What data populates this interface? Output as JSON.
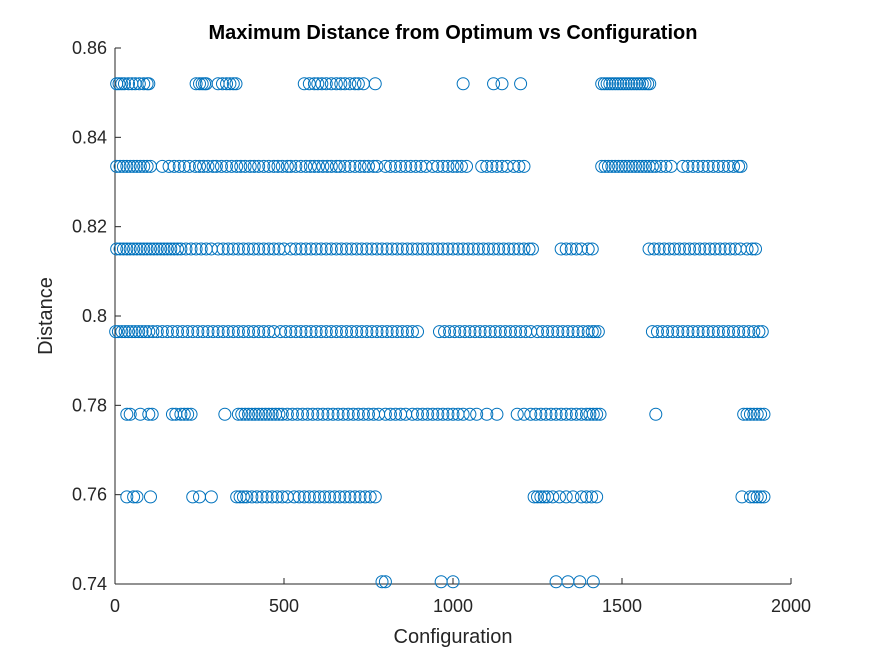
{
  "chart_data": {
    "type": "scatter",
    "title": "Maximum Distance from Optimum vs Configuration",
    "xlabel": "Configuration",
    "ylabel": "Distance",
    "xlim": [
      0,
      2000
    ],
    "ylim": [
      0.74,
      0.86
    ],
    "xticks": [
      "0",
      "500",
      "1000",
      "1500",
      "2000"
    ],
    "yticks": [
      "0.74",
      "0.76",
      "0.78",
      "0.8",
      "0.82",
      "0.84",
      "0.86"
    ],
    "xtick_values": [
      0,
      500,
      1000,
      1500,
      2000
    ],
    "ytick_values": [
      0.74,
      0.76,
      0.78,
      0.8,
      0.82,
      0.84,
      0.86
    ],
    "grid": false,
    "marker": "open-circle",
    "marker_color": "#0072BD",
    "series": [
      {
        "levels": [
          {
            "y": 0.852,
            "x": [
              5,
              12,
              20,
              28,
              40,
              50,
              60,
              72,
              85,
              95,
              100,
              240,
              250,
              258,
              265,
              270,
              305,
              318,
              330,
              340,
              350,
              358,
              560,
              575,
              590,
              600,
              612,
              625,
              640,
              655,
              668,
              680,
              695,
              710,
              720,
              735,
              770,
              1030,
              1120,
              1145,
              1200,
              1440,
              1448,
              1456,
              1464,
              1472,
              1480,
              1488,
              1496,
              1504,
              1512,
              1520,
              1528,
              1536,
              1544,
              1552,
              1560,
              1568,
              1576,
              1582
            ]
          },
          {
            "y": 0.8335,
            "x": [
              5,
              15,
              25,
              35,
              45,
              55,
              65,
              75,
              85,
              95,
              105,
              140,
              160,
              175,
              190,
              205,
              220,
              238,
              250,
              262,
              275,
              290,
              300,
              315,
              330,
              345,
              360,
              372,
              385,
              400,
              412,
              425,
              440,
              455,
              470,
              482,
              495,
              510,
              520,
              535,
              550,
              565,
              578,
              590,
              602,
              615,
              628,
              640,
              655,
              665,
              680,
              695,
              710,
              725,
              738,
              750,
              765,
              775,
              800,
              815,
              830,
              845,
              860,
              875,
              890,
              905,
              920,
              940,
              955,
              970,
              985,
              1000,
              1012,
              1025,
              1040,
              1085,
              1100,
              1115,
              1130,
              1145,
              1160,
              1180,
              1195,
              1210,
              1440,
              1450,
              1460,
              1470,
              1480,
              1490,
              1500,
              1510,
              1520,
              1530,
              1540,
              1550,
              1560,
              1570,
              1580,
              1590,
              1600,
              1615,
              1630,
              1645,
              1680,
              1695,
              1710,
              1725,
              1740,
              1755,
              1770,
              1785,
              1800,
              1815,
              1830,
              1845,
              1852
            ]
          },
          {
            "y": 0.815,
            "x": [
              5,
              15,
              25,
              35,
              45,
              55,
              65,
              75,
              85,
              95,
              105,
              115,
              125,
              135,
              145,
              155,
              165,
              175,
              185,
              195,
              210,
              225,
              240,
              255,
              270,
              285,
              305,
              320,
              335,
              350,
              365,
              380,
              395,
              410,
              425,
              440,
              455,
              470,
              485,
              500,
              520,
              535,
              550,
              565,
              580,
              595,
              610,
              625,
              640,
              655,
              670,
              685,
              700,
              715,
              730,
              745,
              760,
              775,
              790,
              805,
              820,
              835,
              850,
              865,
              880,
              895,
              910,
              925,
              940,
              955,
              970,
              985,
              1000,
              1015,
              1030,
              1045,
              1060,
              1075,
              1090,
              1105,
              1120,
              1135,
              1150,
              1165,
              1180,
              1195,
              1210,
              1225,
              1235,
              1320,
              1335,
              1350,
              1365,
              1380,
              1400,
              1412,
              1580,
              1595,
              1610,
              1625,
              1640,
              1655,
              1670,
              1685,
              1700,
              1715,
              1730,
              1745,
              1760,
              1775,
              1790,
              1805,
              1820,
              1835,
              1850,
              1870,
              1885,
              1895
            ]
          },
          {
            "y": 0.7965,
            "x": [
              2,
              10,
              20,
              30,
              40,
              50,
              60,
              70,
              80,
              90,
              100,
              112,
              125,
              140,
              155,
              170,
              185,
              200,
              215,
              230,
              245,
              260,
              275,
              290,
              305,
              320,
              335,
              350,
              365,
              380,
              395,
              410,
              425,
              440,
              455,
              470,
              490,
              505,
              520,
              535,
              550,
              565,
              580,
              595,
              610,
              625,
              640,
              655,
              670,
              685,
              700,
              715,
              730,
              745,
              760,
              775,
              790,
              805,
              820,
              835,
              850,
              865,
              880,
              895,
              960,
              975,
              990,
              1005,
              1020,
              1035,
              1050,
              1065,
              1080,
              1095,
              1110,
              1125,
              1140,
              1155,
              1170,
              1185,
              1200,
              1215,
              1230,
              1250,
              1265,
              1280,
              1295,
              1310,
              1325,
              1340,
              1355,
              1370,
              1385,
              1400,
              1412,
              1420,
              1430,
              1590,
              1605,
              1620,
              1635,
              1650,
              1665,
              1680,
              1695,
              1710,
              1725,
              1740,
              1755,
              1770,
              1785,
              1800,
              1815,
              1830,
              1845,
              1860,
              1875,
              1890,
              1905,
              1915
            ]
          },
          {
            "y": 0.778,
            "x": [
              35,
              45,
              75,
              100,
              110,
              170,
              180,
              195,
              205,
              215,
              225,
              325,
              365,
              375,
              385,
              395,
              405,
              415,
              425,
              435,
              445,
              455,
              465,
              475,
              485,
              495,
              510,
              525,
              540,
              555,
              570,
              585,
              600,
              615,
              630,
              645,
              660,
              675,
              690,
              705,
              720,
              735,
              750,
              765,
              780,
              800,
              815,
              830,
              845,
              860,
              880,
              895,
              910,
              925,
              940,
              955,
              970,
              985,
              1000,
              1015,
              1030,
              1050,
              1070,
              1100,
              1130,
              1190,
              1210,
              1230,
              1245,
              1260,
              1275,
              1290,
              1305,
              1320,
              1335,
              1350,
              1365,
              1380,
              1395,
              1405,
              1415,
              1425,
              1435,
              1600,
              1860,
              1870,
              1880,
              1890,
              1900,
              1910,
              1920
            ]
          },
          {
            "y": 0.7595,
            "x": [
              35,
              55,
              65,
              105,
              230,
              250,
              285,
              360,
              370,
              380,
              390,
              405,
              420,
              435,
              450,
              465,
              480,
              495,
              510,
              530,
              545,
              560,
              575,
              590,
              605,
              620,
              635,
              650,
              665,
              680,
              695,
              710,
              725,
              740,
              755,
              770,
              1240,
              1250,
              1260,
              1270,
              1280,
              1295,
              1315,
              1335,
              1355,
              1380,
              1395,
              1410,
              1425,
              1855,
              1880,
              1890,
              1900,
              1910,
              1920
            ]
          },
          {
            "y": 0.7405,
            "x": [
              790,
              800,
              965,
              1000,
              1305,
              1340,
              1375,
              1415
            ]
          }
        ]
      }
    ]
  }
}
